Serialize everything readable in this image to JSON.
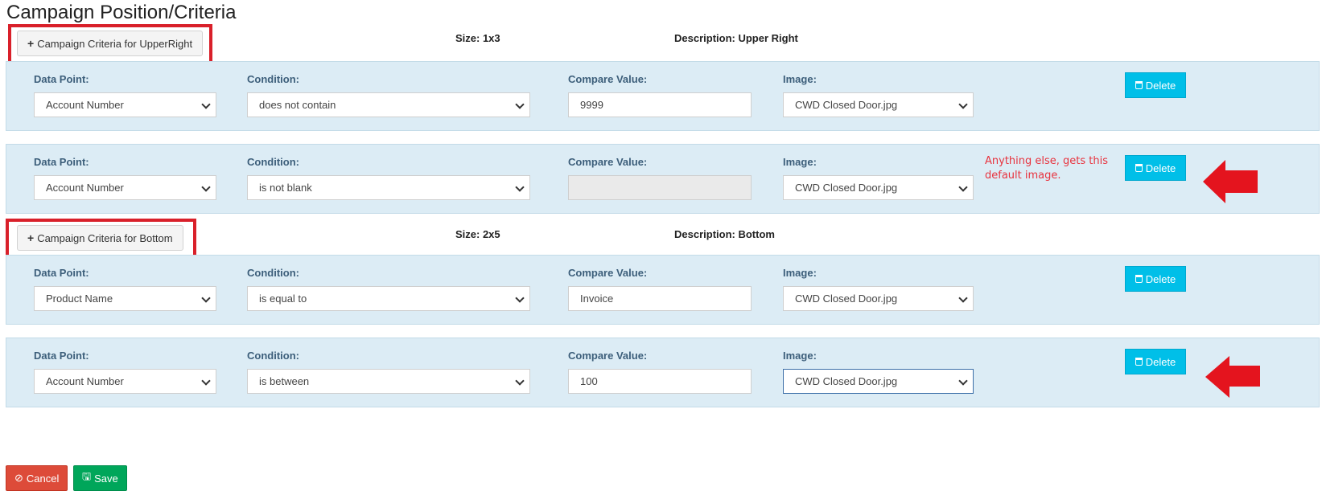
{
  "page": {
    "title": "Campaign Position/Criteria"
  },
  "groups": [
    {
      "add_label": "Campaign Criteria for UpperRight",
      "size": "Size: 1x3",
      "description": "Description: Upper Right",
      "rows": [
        {
          "data_point_label": "Data Point:",
          "data_point": "Account Number",
          "condition_label": "Condition:",
          "condition": "does not contain",
          "compare_label": "Compare Value:",
          "compare": "9999",
          "image_label": "Image:",
          "image": "CWD Closed Door.jpg",
          "delete_label": "Delete"
        },
        {
          "data_point_label": "Data Point:",
          "data_point": "Account Number",
          "condition_label": "Condition:",
          "condition": "is not blank",
          "compare_label": "Compare Value:",
          "compare": "",
          "image_label": "Image:",
          "image": "CWD Closed Door.jpg",
          "delete_label": "Delete"
        }
      ]
    },
    {
      "add_label": "Campaign Criteria for Bottom",
      "size": "Size: 2x5",
      "description": "Description: Bottom",
      "rows": [
        {
          "data_point_label": "Data Point:",
          "data_point": "Product Name",
          "condition_label": "Condition:",
          "condition": "is equal to",
          "compare_label": "Compare Value:",
          "compare": "Invoice",
          "image_label": "Image:",
          "image": "CWD Closed Door.jpg",
          "delete_label": "Delete"
        },
        {
          "data_point_label": "Data Point:",
          "data_point": "Account Number",
          "condition_label": "Condition:",
          "condition": "is between",
          "compare_label": "Compare Value:",
          "compare": "100",
          "image_label": "Image:",
          "image": "CWD Closed Door.jpg",
          "delete_label": "Delete"
        }
      ]
    }
  ],
  "annotation": {
    "text": "Anything else, gets this default image."
  },
  "footer": {
    "cancel_label": "Cancel",
    "save_label": "Save"
  },
  "colors": {
    "row_bg": "#dcecf5",
    "delete_button": "#00bfe8",
    "cancel_button": "#dd4b39",
    "save_button": "#00a65a",
    "annotation_red": "#e8333e"
  },
  "icons": {
    "add": "plus-icon",
    "delete": "trash-icon",
    "select": "chevron-down-icon",
    "cancel": "ban-icon",
    "save": "floppy-disk-icon",
    "annotation": "arrow-left-icon"
  }
}
